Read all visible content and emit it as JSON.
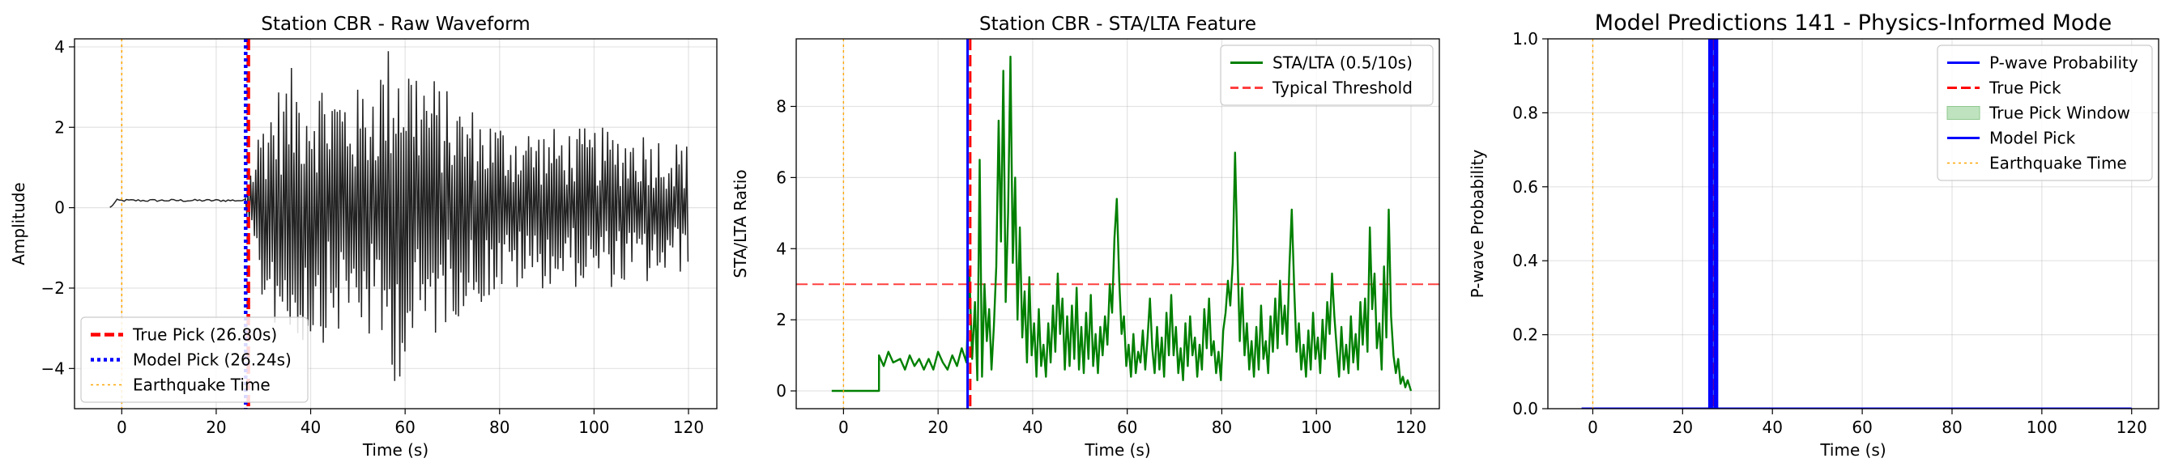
{
  "chart_data": [
    {
      "type": "line",
      "title": "Station CBR - Raw Waveform",
      "xlabel": "Time (s)",
      "ylabel": "Amplitude",
      "xlim": [
        -10,
        126
      ],
      "ylim": [
        -5,
        4.2
      ],
      "xticks": [
        0,
        20,
        40,
        60,
        80,
        100,
        120
      ],
      "yticks": [
        -4,
        -2,
        0,
        2,
        4
      ],
      "grid": true,
      "legend_position": "lower-left",
      "waveform": {
        "color": "#222222",
        "pre_event": {
          "start": -2.5,
          "end": 26.2,
          "level": 0.18,
          "noise": 0.03
        },
        "coda": {
          "start": 26.2,
          "end": 120.0,
          "envelope": [
            [
              26.2,
              0.4
            ],
            [
              27.5,
              1.2
            ],
            [
              30,
              2.6
            ],
            [
              36,
              3.5
            ],
            [
              42,
              3.4
            ],
            [
              50,
              3.0
            ],
            [
              58,
              4.4
            ],
            [
              70,
              2.8
            ],
            [
              80,
              2.2
            ],
            [
              90,
              2.0
            ],
            [
              100,
              2.0
            ],
            [
              110,
              2.0
            ],
            [
              120,
              1.6
            ]
          ]
        }
      },
      "vlines": [
        {
          "name": "True Pick (26.80s)",
          "x": 26.8,
          "style": "dashed",
          "color": "#ff0000"
        },
        {
          "name": "Model Pick (26.24s)",
          "x": 26.24,
          "style": "dotted",
          "color": "#0000ff"
        },
        {
          "name": "Earthquake Time",
          "x": 0,
          "style": "dotted",
          "color": "#ffa500"
        }
      ],
      "legend": [
        {
          "label": "True Pick (26.80s)",
          "style": "dashed",
          "color": "#ff0000"
        },
        {
          "label": "Model Pick (26.24s)",
          "style": "dotted",
          "color": "#0000ff"
        },
        {
          "label": "Earthquake Time",
          "style": "dotted",
          "color": "#ffa500"
        }
      ]
    },
    {
      "type": "line",
      "title": "Station CBR - STA/LTA Feature",
      "xlabel": "Time (s)",
      "ylabel": "STA/LTA Ratio",
      "xlim": [
        -10,
        126
      ],
      "ylim": [
        -0.5,
        9.9
      ],
      "xticks": [
        0,
        20,
        40,
        60,
        80,
        100,
        120
      ],
      "yticks": [
        0,
        2,
        4,
        6,
        8
      ],
      "grid": true,
      "legend_position": "top-right",
      "series_name": "STA/LTA (0.5/10s)",
      "series_color": "#008000",
      "points": [
        [
          -2.5,
          0
        ],
        [
          7.5,
          0
        ],
        [
          7.5,
          1.0
        ],
        [
          8.5,
          0.7
        ],
        [
          9.5,
          1.1
        ],
        [
          10.5,
          0.8
        ],
        [
          12,
          0.9
        ],
        [
          13,
          0.6
        ],
        [
          14,
          1.0
        ],
        [
          15,
          0.7
        ],
        [
          16,
          0.9
        ],
        [
          17,
          0.6
        ],
        [
          18,
          0.9
        ],
        [
          19,
          0.6
        ],
        [
          20,
          1.1
        ],
        [
          21,
          0.8
        ],
        [
          22,
          0.6
        ],
        [
          23,
          1.0
        ],
        [
          24,
          0.7
        ],
        [
          25,
          1.2
        ],
        [
          26,
          0.8
        ],
        [
          26.6,
          3.4
        ],
        [
          27.2,
          0.9
        ],
        [
          27.8,
          2.5
        ],
        [
          28.3,
          0.3
        ],
        [
          28.8,
          6.5
        ],
        [
          29.3,
          0.4
        ],
        [
          29.8,
          3.0
        ],
        [
          30.3,
          1.4
        ],
        [
          30.8,
          2.3
        ],
        [
          31.3,
          0.6
        ],
        [
          31.8,
          1.8
        ],
        [
          32.3,
          3.5
        ],
        [
          32.8,
          7.6
        ],
        [
          33.3,
          4.2
        ],
        [
          33.8,
          9.0
        ],
        [
          34.3,
          2.5
        ],
        [
          34.8,
          5.0
        ],
        [
          35.3,
          9.4
        ],
        [
          35.8,
          3.6
        ],
        [
          36.3,
          6.0
        ],
        [
          36.8,
          2.0
        ],
        [
          37.3,
          4.6
        ],
        [
          37.8,
          1.5
        ],
        [
          38.3,
          2.8
        ],
        [
          38.8,
          0.8
        ],
        [
          39.3,
          3.2
        ],
        [
          39.8,
          1.0
        ],
        [
          40.3,
          1.9
        ],
        [
          40.8,
          0.4
        ],
        [
          41.3,
          2.3
        ],
        [
          41.8,
          0.7
        ],
        [
          42.3,
          1.3
        ],
        [
          42.8,
          0.4
        ],
        [
          43.3,
          1.9
        ],
        [
          43.8,
          0.8
        ],
        [
          44.3,
          2.4
        ],
        [
          44.8,
          1.1
        ],
        [
          45.3,
          3.3
        ],
        [
          45.8,
          1.6
        ],
        [
          46.3,
          2.6
        ],
        [
          46.8,
          0.6
        ],
        [
          47.3,
          2.1
        ],
        [
          47.8,
          0.7
        ],
        [
          48.3,
          2.4
        ],
        [
          48.8,
          0.9
        ],
        [
          49.3,
          2.9
        ],
        [
          49.8,
          0.6
        ],
        [
          50.3,
          1.8
        ],
        [
          50.8,
          0.5
        ],
        [
          51.3,
          2.2
        ],
        [
          51.8,
          0.9
        ],
        [
          52.3,
          2.7
        ],
        [
          52.8,
          0.7
        ],
        [
          53.3,
          1.6
        ],
        [
          53.8,
          0.5
        ],
        [
          54.3,
          1.8
        ],
        [
          54.8,
          1.0
        ],
        [
          55.3,
          2.1
        ],
        [
          55.8,
          1.3
        ],
        [
          56.3,
          3.0
        ],
        [
          56.8,
          2.2
        ],
        [
          57.3,
          4.3
        ],
        [
          57.8,
          5.4
        ],
        [
          58.3,
          3.1
        ],
        [
          58.8,
          1.6
        ],
        [
          59.3,
          2.1
        ],
        [
          59.8,
          0.7
        ],
        [
          60.3,
          1.3
        ],
        [
          60.8,
          0.4
        ],
        [
          61.3,
          1.6
        ],
        [
          61.8,
          0.5
        ],
        [
          62.3,
          1.1
        ],
        [
          62.8,
          0.8
        ],
        [
          63.3,
          1.7
        ],
        [
          63.8,
          0.6
        ],
        [
          64.3,
          1.5
        ],
        [
          64.8,
          2.6
        ],
        [
          65.3,
          1.2
        ],
        [
          65.8,
          0.5
        ],
        [
          66.3,
          1.8
        ],
        [
          66.8,
          0.6
        ],
        [
          67.3,
          1.5
        ],
        [
          67.8,
          0.4
        ],
        [
          68.3,
          2.2
        ],
        [
          68.8,
          1.0
        ],
        [
          69.3,
          2.7
        ],
        [
          69.8,
          1.0
        ],
        [
          70.3,
          1.8
        ],
        [
          70.8,
          0.5
        ],
        [
          71.3,
          1.2
        ],
        [
          71.8,
          0.3
        ],
        [
          72.3,
          1.9
        ],
        [
          72.8,
          0.7
        ],
        [
          73.3,
          2.1
        ],
        [
          73.8,
          1.0
        ],
        [
          74.3,
          1.5
        ],
        [
          74.8,
          0.4
        ],
        [
          75.3,
          1.3
        ],
        [
          75.8,
          0.6
        ],
        [
          76.3,
          2.3
        ],
        [
          76.8,
          1.2
        ],
        [
          77.3,
          2.6
        ],
        [
          77.8,
          1.0
        ],
        [
          78.3,
          1.4
        ],
        [
          78.8,
          0.5
        ],
        [
          79.3,
          1.1
        ],
        [
          79.8,
          0.3
        ],
        [
          80.3,
          1.7
        ],
        [
          80.8,
          2.2
        ],
        [
          81.3,
          3.1
        ],
        [
          81.8,
          2.4
        ],
        [
          82.3,
          3.6
        ],
        [
          82.8,
          6.7
        ],
        [
          83.3,
          3.9
        ],
        [
          83.8,
          1.4
        ],
        [
          84.3,
          2.9
        ],
        [
          84.8,
          1.0
        ],
        [
          85.3,
          1.9
        ],
        [
          85.8,
          0.6
        ],
        [
          86.3,
          1.4
        ],
        [
          86.8,
          0.4
        ],
        [
          87.3,
          1.8
        ],
        [
          87.8,
          0.6
        ],
        [
          88.3,
          2.4
        ],
        [
          88.8,
          0.9
        ],
        [
          89.3,
          1.4
        ],
        [
          89.8,
          0.5
        ],
        [
          90.3,
          2.1
        ],
        [
          90.8,
          1.1
        ],
        [
          91.3,
          2.6
        ],
        [
          91.8,
          1.2
        ],
        [
          92.3,
          3.1
        ],
        [
          92.8,
          1.6
        ],
        [
          93.3,
          2.4
        ],
        [
          93.8,
          1.3
        ],
        [
          94.3,
          3.5
        ],
        [
          94.8,
          5.1
        ],
        [
          95.3,
          2.9
        ],
        [
          95.8,
          1.1
        ],
        [
          96.3,
          1.9
        ],
        [
          96.8,
          0.6
        ],
        [
          97.3,
          1.3
        ],
        [
          97.8,
          0.4
        ],
        [
          98.3,
          1.7
        ],
        [
          98.8,
          0.6
        ],
        [
          99.3,
          2.2
        ],
        [
          99.8,
          0.9
        ],
        [
          100.3,
          1.5
        ],
        [
          100.8,
          0.5
        ],
        [
          101.3,
          2.0
        ],
        [
          101.8,
          0.9
        ],
        [
          102.3,
          2.5
        ],
        [
          102.8,
          1.6
        ],
        [
          103.3,
          3.3
        ],
        [
          103.8,
          2.1
        ],
        [
          104.3,
          1.2
        ],
        [
          104.8,
          0.4
        ],
        [
          105.3,
          1.8
        ],
        [
          105.8,
          0.6
        ],
        [
          106.3,
          1.3
        ],
        [
          106.8,
          0.5
        ],
        [
          107.3,
          2.1
        ],
        [
          107.8,
          0.8
        ],
        [
          108.3,
          1.6
        ],
        [
          108.8,
          0.6
        ],
        [
          109.3,
          2.5
        ],
        [
          109.8,
          1.3
        ],
        [
          110.3,
          2.6
        ],
        [
          110.8,
          1.1
        ],
        [
          111.3,
          4.6
        ],
        [
          111.8,
          2.3
        ],
        [
          112.3,
          3.3
        ],
        [
          112.8,
          1.2
        ],
        [
          113.3,
          1.9
        ],
        [
          113.8,
          0.6
        ],
        [
          114.3,
          3.5
        ],
        [
          114.8,
          1.5
        ],
        [
          115.3,
          5.1
        ],
        [
          115.8,
          2.1
        ],
        [
          116.3,
          1.0
        ],
        [
          116.8,
          0.5
        ],
        [
          117.3,
          0.9
        ],
        [
          117.8,
          0.2
        ],
        [
          118.3,
          0.4
        ],
        [
          118.8,
          0.1
        ],
        [
          119.3,
          0.3
        ],
        [
          120.0,
          0.0
        ]
      ],
      "hlines": [
        {
          "name": "Typical Threshold",
          "y": 3.0,
          "style": "dashed",
          "color": "#ff0000",
          "opacity": 0.75
        }
      ],
      "vlines": [
        {
          "name": "true-pick",
          "x": 26.8,
          "style": "dashed",
          "color": "#ff0000",
          "width": 3
        },
        {
          "name": "model-pick",
          "x": 26.24,
          "style": "solid",
          "color": "#0000ff",
          "width": 3
        },
        {
          "name": "earthquake-time",
          "x": 0,
          "style": "dotted",
          "color": "#ffa500",
          "width": 1.4
        }
      ],
      "legend": [
        {
          "label": "STA/LTA (0.5/10s)",
          "style": "solid",
          "color": "#008000"
        },
        {
          "label": "Typical Threshold",
          "style": "dashed",
          "color": "#ff0000"
        }
      ]
    },
    {
      "type": "line",
      "title": "Model Predictions 141 - Physics-Informed Mode",
      "xlabel": "Time (s)",
      "ylabel": "P-wave Probability",
      "xlim": [
        -10,
        126
      ],
      "ylim": [
        0,
        1
      ],
      "xticks": [
        0,
        20,
        40,
        60,
        80,
        100,
        120
      ],
      "yticks": [
        0.0,
        0.2,
        0.4,
        0.6,
        0.8,
        1.0
      ],
      "grid": true,
      "legend_position": "top-right",
      "series_name": "P-wave Probability",
      "series_color": "#0000ff",
      "points": [
        [
          -2.5,
          0
        ],
        [
          120,
          0
        ]
      ],
      "true_pick_window": [
        26.3,
        27.3
      ],
      "vlines": [
        {
          "name": "true-pick",
          "x": 26.8,
          "style": "dashed",
          "color": "#ff0000",
          "width": 2
        },
        {
          "name": "model-pick",
          "x": 26.24,
          "style": "solid",
          "color": "#0000ff",
          "width": 6
        },
        {
          "name": "model-pick-band",
          "x": 27.4,
          "style": "solid",
          "color": "#0000ff",
          "width": 6
        },
        {
          "name": "earthquake-time",
          "x": 0,
          "style": "dotted",
          "color": "#ffa500",
          "width": 1.4
        }
      ],
      "legend": [
        {
          "label": "P-wave Probability",
          "style": "solid",
          "color": "#0000ff"
        },
        {
          "label": "True Pick",
          "style": "dashed",
          "color": "#ff0000"
        },
        {
          "label": "True Pick Window",
          "style": "patch",
          "color": "#bfe3bf"
        },
        {
          "label": "Model Pick",
          "style": "solid",
          "color": "#0000ff"
        },
        {
          "label": "Earthquake Time",
          "style": "dotted",
          "color": "#ffa500"
        }
      ]
    }
  ]
}
